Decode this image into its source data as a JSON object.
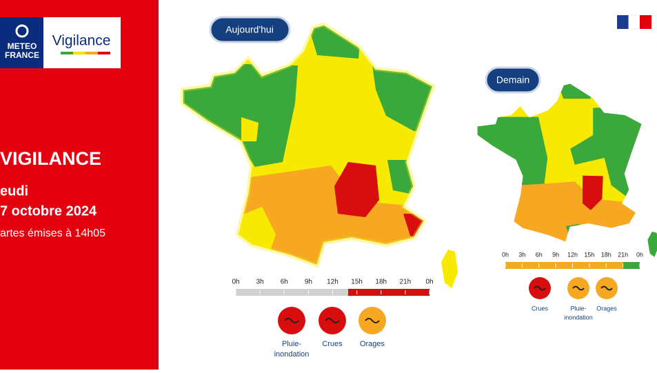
{
  "header": {
    "logo_top": "METEO",
    "logo_bottom": "FRANCE",
    "product": "Vigilance"
  },
  "sidebar": {
    "title": "VIGILANCE",
    "day": "eudi",
    "date": "7 octobre 2024",
    "issued": "artes émises à 14h05"
  },
  "maps": [
    {
      "label": "Aujourd'hui",
      "timeline": [
        "0h",
        "3h",
        "6h",
        "9h",
        "12h",
        "15h",
        "18h",
        "21h",
        "0h"
      ],
      "hazards": [
        {
          "lines": [
            "Pluie-",
            "inondation"
          ]
        },
        {
          "lines": [
            "Crues"
          ]
        },
        {
          "lines": [
            "Orages"
          ]
        }
      ]
    },
    {
      "label": "Demain",
      "timeline": [
        "0h",
        "3h",
        "6h",
        "9h",
        "12h",
        "15h",
        "18h",
        "21h",
        "0h"
      ],
      "hazards": [
        {
          "lines": [
            "Crues"
          ]
        },
        {
          "lines": [
            "Pluie-",
            "inondation"
          ]
        },
        {
          "lines": [
            "Orages"
          ]
        }
      ]
    }
  ]
}
